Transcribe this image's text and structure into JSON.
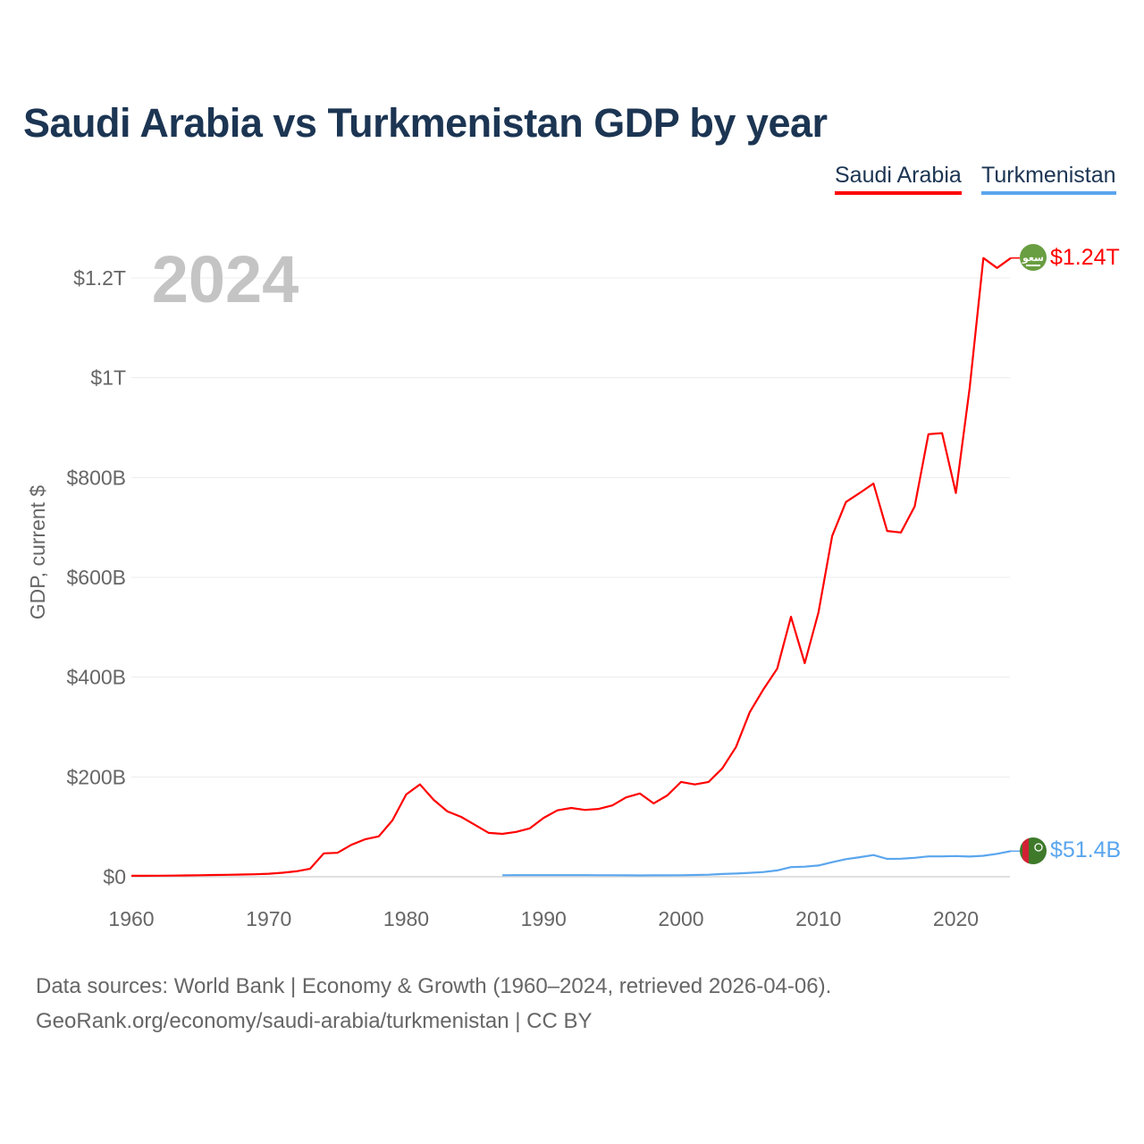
{
  "title": "Saudi Arabia vs Turkmenistan GDP by year",
  "footer": {
    "line1": "Data sources: World Bank | Economy & Growth (1960–2024, retrieved 2026-04-06).",
    "line2": "GeoRank.org/economy/saudi-arabia/turkmenistan | CC BY"
  },
  "chart_data": {
    "type": "line",
    "title": "Saudi Arabia vs Turkmenistan GDP by year",
    "ylabel": "GDP, current $",
    "xlabel": "",
    "year_watermark": "2024",
    "xlim": [
      1960,
      2024
    ],
    "ylim": [
      0,
      1250
    ],
    "y_unit": "billion USD",
    "x_ticks": [
      "1960",
      "1970",
      "1980",
      "1990",
      "2000",
      "2010",
      "2020"
    ],
    "x_tick_values": [
      1960,
      1970,
      1980,
      1990,
      2000,
      2010,
      2020
    ],
    "y_ticks": [
      "$0",
      "$200B",
      "$400B",
      "$600B",
      "$800B",
      "$1T",
      "$1.2T"
    ],
    "y_tick_values": [
      0,
      200,
      400,
      600,
      800,
      1000,
      1200
    ],
    "grid": true,
    "legend_position": "top-right",
    "series": [
      {
        "name": "Saudi Arabia",
        "color": "#ff0000",
        "end_label": "$1.24T",
        "flag": "saudi-arabia-flag",
        "x": [
          1960,
          1961,
          1962,
          1963,
          1964,
          1965,
          1966,
          1967,
          1968,
          1969,
          1970,
          1971,
          1972,
          1973,
          1974,
          1975,
          1976,
          1977,
          1978,
          1979,
          1980,
          1981,
          1982,
          1983,
          1984,
          1985,
          1986,
          1987,
          1988,
          1989,
          1990,
          1991,
          1992,
          1993,
          1994,
          1995,
          1996,
          1997,
          1998,
          1999,
          2000,
          2001,
          2002,
          2003,
          2004,
          2005,
          2006,
          2007,
          2008,
          2009,
          2010,
          2011,
          2012,
          2013,
          2014,
          2015,
          2016,
          2017,
          2018,
          2019,
          2020,
          2021,
          2022,
          2023,
          2024
        ],
        "values": [
          2,
          2,
          2.2,
          2.4,
          2.6,
          3,
          3.5,
          4,
          4.5,
          5,
          6,
          8,
          11,
          16,
          47,
          48,
          64,
          75,
          81,
          113,
          165,
          185,
          154,
          131,
          120,
          104,
          88,
          86,
          90,
          97,
          118,
          133,
          138,
          134,
          136,
          143,
          159,
          167,
          147,
          163,
          190,
          185,
          190,
          217,
          260,
          330,
          376,
          417,
          521,
          428,
          530,
          683,
          751,
          769,
          788,
          693,
          690,
          742,
          887,
          889,
          769,
          979,
          1240,
          1220,
          1240
        ]
      },
      {
        "name": "Turkmenistan",
        "color": "#5aa6ee",
        "end_label": "$51.4B",
        "flag": "turkmenistan-flag",
        "x": [
          1987,
          1988,
          1989,
          1990,
          1991,
          1992,
          1993,
          1994,
          1995,
          1996,
          1997,
          1998,
          1999,
          2000,
          2001,
          2002,
          2003,
          2004,
          2005,
          2006,
          2007,
          2008,
          2009,
          2010,
          2011,
          2012,
          2013,
          2014,
          2015,
          2016,
          2017,
          2018,
          2019,
          2020,
          2021,
          2022,
          2023,
          2024
        ],
        "values": [
          3,
          3.3,
          3.3,
          3.2,
          3.2,
          3.2,
          3.2,
          3,
          3,
          2.8,
          2.7,
          2.8,
          2.9,
          3,
          3.6,
          4.2,
          5.5,
          6.5,
          7.8,
          9.5,
          12.7,
          19.3,
          20.2,
          22.6,
          29.2,
          35.2,
          39.2,
          43.5,
          35.8,
          36.2,
          37.9,
          40.8,
          40.8,
          41.6,
          40.5,
          42,
          46,
          51.4
        ]
      }
    ]
  }
}
